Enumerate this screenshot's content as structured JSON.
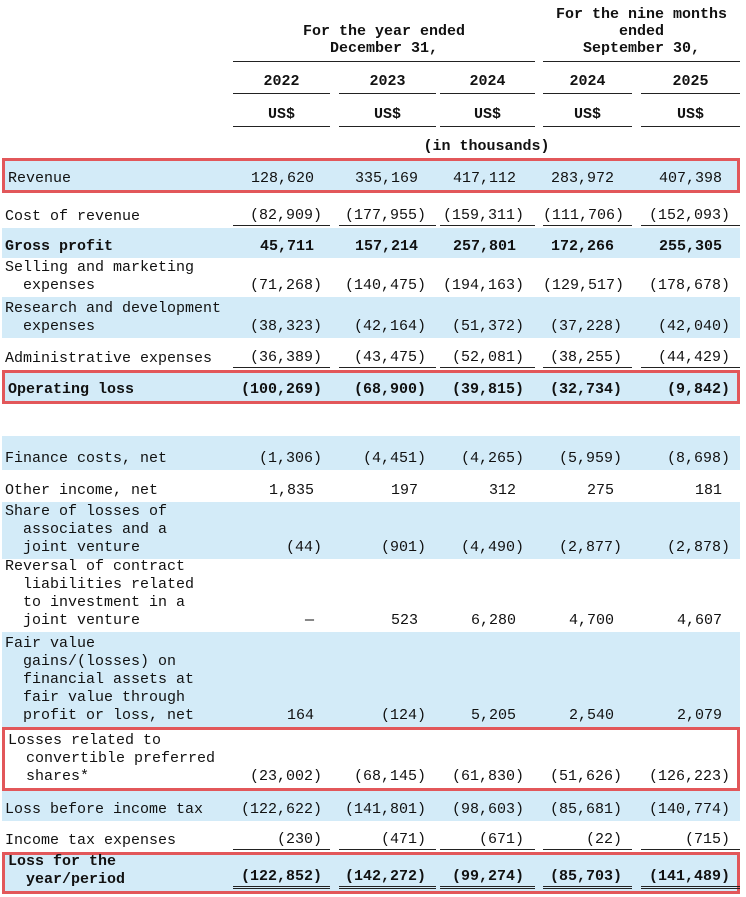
{
  "table": {
    "group_headers": [
      [
        "For the year ended",
        "December 31,"
      ],
      [
        "For the nine months",
        "ended",
        "September 30,"
      ]
    ],
    "years": [
      "2022",
      "2023",
      "2024",
      "2024",
      "2025"
    ],
    "currency": [
      "US$",
      "US$",
      "US$",
      "US$",
      "US$"
    ],
    "unit_note": "(in thousands)",
    "rows": [
      {
        "label": [
          "Revenue"
        ],
        "values": [
          "128,620",
          "335,169",
          "417,112",
          "283,972",
          "407,398"
        ]
      },
      {
        "label": [
          "Cost of revenue"
        ],
        "values": [
          "(82,909)",
          "(177,955)",
          "(159,311)",
          "(111,706)",
          "(152,093)"
        ]
      },
      {
        "label": [
          "Gross profit"
        ],
        "values": [
          "45,711",
          "157,214",
          "257,801",
          "172,266",
          "255,305"
        ]
      },
      {
        "label": [
          "Selling and marketing",
          "expenses"
        ],
        "values": [
          "(71,268)",
          "(140,475)",
          "(194,163)",
          "(129,517)",
          "(178,678)"
        ]
      },
      {
        "label": [
          "Research and development",
          "expenses"
        ],
        "values": [
          "(38,323)",
          "(42,164)",
          "(51,372)",
          "(37,228)",
          "(42,040)"
        ]
      },
      {
        "label": [
          "Administrative expenses"
        ],
        "values": [
          "(36,389)",
          "(43,475)",
          "(52,081)",
          "(38,255)",
          "(44,429)"
        ]
      },
      {
        "label": [
          "Operating loss"
        ],
        "values": [
          "(100,269)",
          "(68,900)",
          "(39,815)",
          "(32,734)",
          "(9,842)"
        ]
      },
      {
        "label": [
          "Finance costs, net"
        ],
        "values": [
          "(1,306)",
          "(4,451)",
          "(4,265)",
          "(5,959)",
          "(8,698)"
        ]
      },
      {
        "label": [
          "Other income, net"
        ],
        "values": [
          "1,835",
          "197",
          "312",
          "275",
          "181"
        ]
      },
      {
        "label": [
          "Share of losses of",
          "associates and a",
          "joint venture"
        ],
        "values": [
          "(44)",
          "(901)",
          "(4,490)",
          "(2,877)",
          "(2,878)"
        ]
      },
      {
        "label": [
          "Reversal of contract",
          "liabilities related",
          "to investment in a",
          "joint venture"
        ],
        "values": [
          "—",
          "523",
          "6,280",
          "4,700",
          "4,607"
        ]
      },
      {
        "label": [
          "Fair value",
          "gains/(losses) on",
          "financial assets at",
          "fair value through",
          "profit or loss, net"
        ],
        "values": [
          "164",
          "(124)",
          "5,205",
          "2,540",
          "2,079"
        ]
      },
      {
        "label": [
          "Losses related to",
          "convertible preferred",
          "shares*"
        ],
        "values": [
          "(23,002)",
          "(68,145)",
          "(61,830)",
          "(51,626)",
          "(126,223)"
        ]
      },
      {
        "label": [
          "Loss before income tax"
        ],
        "values": [
          "(122,622)",
          "(141,801)",
          "(98,603)",
          "(85,681)",
          "(140,774)"
        ]
      },
      {
        "label": [
          "Income tax expenses"
        ],
        "values": [
          "(230)",
          "(471)",
          "(671)",
          "(22)",
          "(715)"
        ]
      },
      {
        "label": [
          "Loss for the",
          "year/period"
        ],
        "values": [
          "(122,852)",
          "(142,272)",
          "(99,274)",
          "(85,703)",
          "(141,489)"
        ]
      }
    ]
  }
}
